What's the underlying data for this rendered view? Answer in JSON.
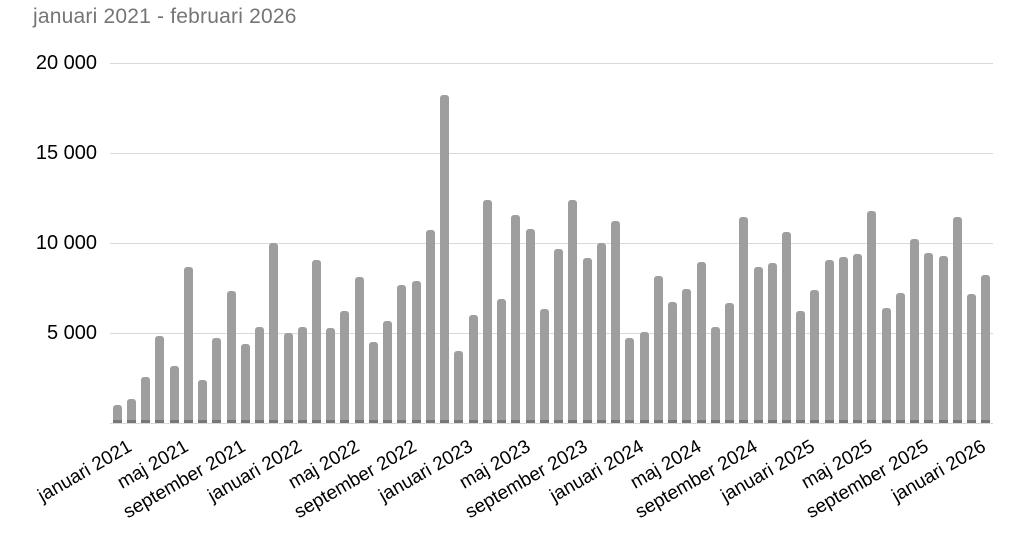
{
  "chart_data": {
    "type": "bar",
    "title": "januari 2021 - februari 2026",
    "xlabel": "",
    "ylabel": "",
    "ylim": [
      0,
      20000
    ],
    "grid": true,
    "legend": "none",
    "bar_orientation": "vertical",
    "y_tick_values": [
      5000,
      10000,
      15000,
      20000
    ],
    "y_tick_labels": [
      "5 000",
      "10 000",
      "15 000",
      "20 000"
    ],
    "x_tick_step": 4,
    "x_tick_labels": [
      "januari 2021",
      "maj 2021",
      "september 2021",
      "januari 2022",
      "maj 2022",
      "september 2022",
      "januari 2023",
      "maj 2023",
      "september 2023",
      "januari 2024",
      "maj 2024",
      "september 2024",
      "januari 2025",
      "maj 2025",
      "september 2025",
      "januari 2026"
    ],
    "categories": [
      "januari 2021",
      "februari 2021",
      "mars 2021",
      "april 2021",
      "maj 2021",
      "juni 2021",
      "juli 2021",
      "augusti 2021",
      "september 2021",
      "oktober 2021",
      "november 2021",
      "december 2021",
      "januari 2022",
      "februari 2022",
      "mars 2022",
      "april 2022",
      "maj 2022",
      "juni 2022",
      "juli 2022",
      "augusti 2022",
      "september 2022",
      "oktober 2022",
      "november 2022",
      "december 2022",
      "januari 2023",
      "februari 2023",
      "mars 2023",
      "april 2023",
      "maj 2023",
      "juni 2023",
      "juli 2023",
      "augusti 2023",
      "september 2023",
      "oktober 2023",
      "november 2023",
      "december 2023",
      "januari 2024",
      "februari 2024",
      "mars 2024",
      "april 2024",
      "maj 2024",
      "juni 2024",
      "juli 2024",
      "augusti 2024",
      "september 2024",
      "oktober 2024",
      "november 2024",
      "december 2024",
      "januari 2025",
      "februari 2025",
      "mars 2025",
      "april 2025",
      "maj 2025",
      "juni 2025",
      "juli 2025",
      "augusti 2025",
      "september 2025",
      "oktober 2025",
      "november 2025",
      "december 2025",
      "januari 2026",
      "februari 2026"
    ],
    "values": [
      1000,
      1350,
      2550,
      4850,
      3150,
      8650,
      2400,
      4700,
      7350,
      4400,
      5350,
      10000,
      5000,
      5350,
      9050,
      5300,
      6250,
      8100,
      4500,
      5650,
      7650,
      7900,
      10700,
      18200,
      4000,
      6000,
      12400,
      6900,
      11550,
      10800,
      6350,
      9650,
      12400,
      9150,
      10000,
      11200,
      4750,
      5050,
      8150,
      6700,
      7450,
      8950,
      5350,
      6650,
      11450,
      8650,
      8900,
      10600,
      6250,
      7400,
      9050,
      9200,
      9400,
      11800,
      6400,
      7250,
      10250,
      9450,
      9300,
      11450,
      7150,
      8250
    ],
    "colors": {
      "bar": "#9e9e9e",
      "bar_foot": "#787878",
      "gridline": "#d9d9d9",
      "axis_line": "#d9d9d9",
      "title_text": "#757575",
      "axis_text": "#000000",
      "background": "#ffffff"
    }
  }
}
